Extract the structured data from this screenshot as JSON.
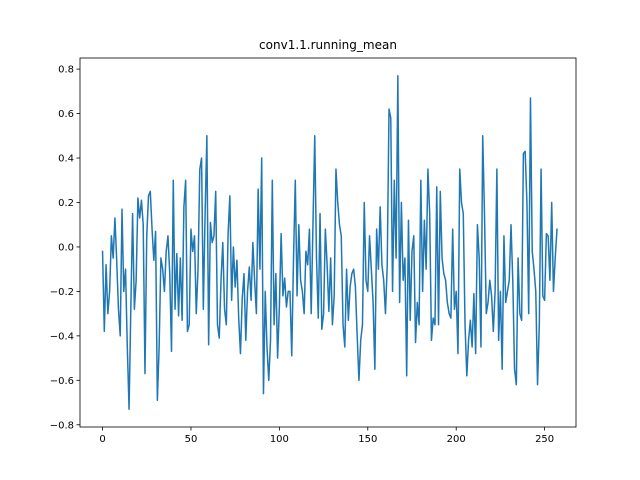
{
  "chart_data": {
    "type": "line",
    "title": "conv1.1.running_mean",
    "xlabel": "",
    "ylabel": "",
    "xlim": [
      -12.75,
      267.75
    ],
    "ylim": [
      -0.81,
      0.85
    ],
    "x_ticks": [
      0,
      50,
      100,
      150,
      200,
      250
    ],
    "y_ticks": [
      -0.8,
      -0.6,
      -0.4,
      -0.2,
      0.0,
      0.2,
      0.4,
      0.6,
      0.8
    ],
    "x_tick_labels": [
      "0",
      "50",
      "100",
      "150",
      "200",
      "250"
    ],
    "y_tick_labels": [
      "−0.8",
      "−0.6",
      "−0.4",
      "−0.2",
      "0.0",
      "0.2",
      "0.4",
      "0.6",
      "0.8"
    ],
    "grid": false,
    "legend": "none",
    "series": [
      {
        "color": "#1f77b4",
        "x_start": 0,
        "x_step": 1,
        "values": [
          -0.02,
          -0.38,
          -0.08,
          -0.3,
          -0.2,
          0.05,
          -0.05,
          0.13,
          -0.06,
          -0.28,
          -0.4,
          0.17,
          -0.2,
          -0.1,
          -0.45,
          -0.73,
          -0.27,
          0.15,
          -0.28,
          -0.15,
          0.22,
          0.13,
          0.21,
          0.1,
          -0.57,
          0.05,
          0.23,
          0.25,
          0.08,
          -0.06,
          0.07,
          -0.69,
          -0.45,
          -0.05,
          -0.1,
          -0.2,
          -0.02,
          0.05,
          -0.12,
          -0.47,
          0.3,
          -0.28,
          -0.03,
          -0.31,
          -0.05,
          -0.33,
          0.18,
          0.3,
          -0.38,
          -0.35,
          0.08,
          -0.02,
          0.05,
          -0.3,
          -0.1,
          0.35,
          0.4,
          -0.28,
          0.15,
          0.5,
          -0.44,
          0.11,
          0.02,
          0.05,
          0.25,
          -0.35,
          -0.41,
          -0.15,
          0.02,
          -0.28,
          -0.35,
          0.06,
          0.23,
          -0.24,
          0.0,
          -0.18,
          -0.06,
          -0.32,
          -0.48,
          -0.23,
          -0.12,
          -0.42,
          -0.2,
          -0.09,
          -0.24,
          0.02,
          -0.15,
          -0.3,
          0.26,
          -0.1,
          0.4,
          -0.66,
          -0.2,
          -0.45,
          -0.6,
          -0.42,
          0.3,
          -0.35,
          -0.12,
          -0.5,
          -0.27,
          0.06,
          -0.22,
          -0.14,
          -0.27,
          -0.2,
          -0.2,
          -0.49,
          -0.05,
          0.3,
          -0.22,
          0.1,
          -0.15,
          -0.2,
          -0.3,
          -0.02,
          -0.08,
          0.08,
          -0.3,
          0.1,
          0.5,
          -0.05,
          -0.32,
          0.15,
          -0.37,
          -0.3,
          0.08,
          -0.08,
          -0.29,
          -0.05,
          -0.35,
          -0.22,
          0.35,
          0.2,
          0.1,
          0.05,
          -0.35,
          -0.45,
          -0.1,
          -0.33,
          -0.18,
          -0.12,
          -0.1,
          -0.18,
          -0.4,
          -0.6,
          -0.42,
          -0.35,
          0.2,
          -0.15,
          -0.2,
          0.05,
          -0.1,
          -0.25,
          -0.55,
          0.08,
          -0.1,
          0.18,
          -0.08,
          -0.15,
          -0.3,
          -0.08,
          0.62,
          0.58,
          -0.2,
          0.3,
          -0.05,
          0.77,
          -0.25,
          0.2,
          -0.15,
          -0.05,
          -0.58,
          0.12,
          -0.33,
          -0.02,
          0.05,
          -0.43,
          -0.25,
          -0.35,
          0.3,
          -0.2,
          0.12,
          -0.1,
          0.35,
          0.15,
          -0.42,
          -0.32,
          -0.35,
          0.27,
          -0.35,
          0.25,
          -0.05,
          -0.12,
          -0.15,
          -0.25,
          -0.3,
          -0.32,
          0.08,
          -0.28,
          -0.2,
          -0.48,
          0.35,
          0.2,
          0.15,
          -0.35,
          -0.58,
          -0.42,
          -0.33,
          -0.45,
          -0.21,
          -0.48,
          0.1,
          -0.05,
          -0.45,
          0.5,
          0.15,
          -0.3,
          -0.25,
          -0.15,
          -0.22,
          -0.38,
          -0.2,
          0.35,
          -0.42,
          -0.2,
          -0.55,
          0.05,
          -0.25,
          -0.2,
          -0.15,
          0.1,
          -0.15,
          -0.55,
          -0.62,
          -0.05,
          -0.3,
          -0.33,
          0.42,
          0.43,
          0.2,
          -0.3,
          0.67,
          -0.02,
          -0.1,
          -0.2,
          -0.62,
          -0.35,
          0.35,
          -0.22,
          -0.24,
          0.06,
          0.05,
          -0.15,
          0.2,
          -0.2,
          -0.05,
          0.08
        ]
      }
    ]
  }
}
